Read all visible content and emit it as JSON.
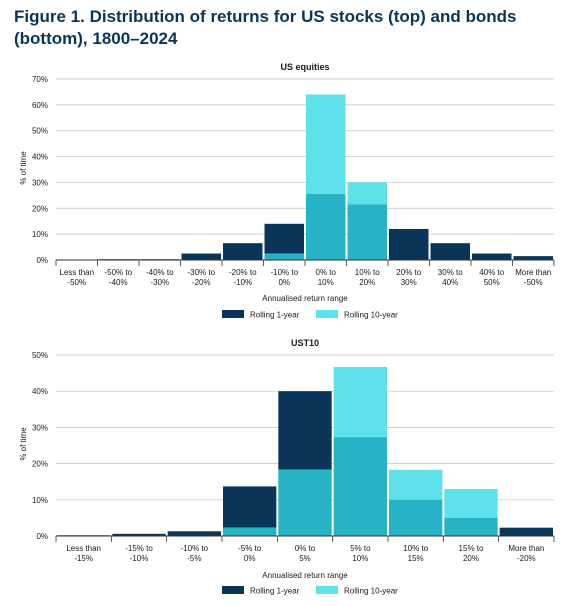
{
  "figure": {
    "title": "Figure 1. Distribution of returns for US stocks (top) and bonds (bottom), 1800–2024"
  },
  "colors": {
    "rolling_1_year": "#0b3558",
    "rolling_10_year": "#5ee1e8",
    "overlap": "#27b3c6",
    "grid": "#bfbfbf",
    "axis": "#333333"
  },
  "chart_data": [
    {
      "type": "bar",
      "title": "US equities",
      "ylabel": "% of time",
      "xlabel": "Annualised return range",
      "ylim": [
        0,
        70
      ],
      "yticks": [
        "0%",
        "10%",
        "20%",
        "30%",
        "40%",
        "50%",
        "60%",
        "70%"
      ],
      "categories": [
        [
          "Less than",
          "-50%"
        ],
        [
          "-50% to",
          "-40%"
        ],
        [
          "-40% to",
          "-30%"
        ],
        [
          "-30% to",
          "-20%"
        ],
        [
          "-20% to",
          "-10%"
        ],
        [
          "-10% to",
          "0%"
        ],
        [
          "0% to",
          "10%"
        ],
        [
          "10% to",
          "20%"
        ],
        [
          "20% to",
          "30%"
        ],
        [
          "30% to",
          "40%"
        ],
        [
          "40% to",
          "50%"
        ],
        [
          "More than",
          "-50%"
        ]
      ],
      "series": [
        {
          "name": "Rolling 1-year",
          "values": [
            0.2,
            0.3,
            0.3,
            2.5,
            6.5,
            14.0,
            25.5,
            21.5,
            12.0,
            6.5,
            2.5,
            1.5
          ]
        },
        {
          "name": "Rolling 10-year",
          "values": [
            0,
            0,
            0,
            0,
            0,
            2.5,
            64.0,
            30.0,
            0,
            0,
            0,
            0
          ]
        }
      ],
      "grid": true,
      "legend": "bottom"
    },
    {
      "type": "bar",
      "title": "UST10",
      "ylabel": "% of time",
      "xlabel": "Annualised return range",
      "ylim": [
        0,
        50
      ],
      "yticks": [
        "0%",
        "10%",
        "20%",
        "30%",
        "40%",
        "50%"
      ],
      "categories": [
        [
          "Less than",
          "-15%"
        ],
        [
          "-15% to",
          "-10%"
        ],
        [
          "-10% to",
          "-5%"
        ],
        [
          "-5% to",
          "0%"
        ],
        [
          "0% to",
          "5%"
        ],
        [
          "5% to",
          "10%"
        ],
        [
          "10% to",
          "15%"
        ],
        [
          "15% to",
          "20%"
        ],
        [
          "More than",
          "-20%"
        ]
      ],
      "series": [
        {
          "name": "Rolling 1-year",
          "values": [
            0.2,
            0.6,
            1.3,
            13.7,
            40.0,
            27.3,
            10.0,
            5.0,
            2.3
          ]
        },
        {
          "name": "Rolling 10-year",
          "values": [
            0,
            0,
            0,
            2.3,
            18.3,
            46.7,
            18.3,
            13.0,
            0
          ]
        }
      ],
      "grid": true,
      "legend": "bottom"
    }
  ]
}
